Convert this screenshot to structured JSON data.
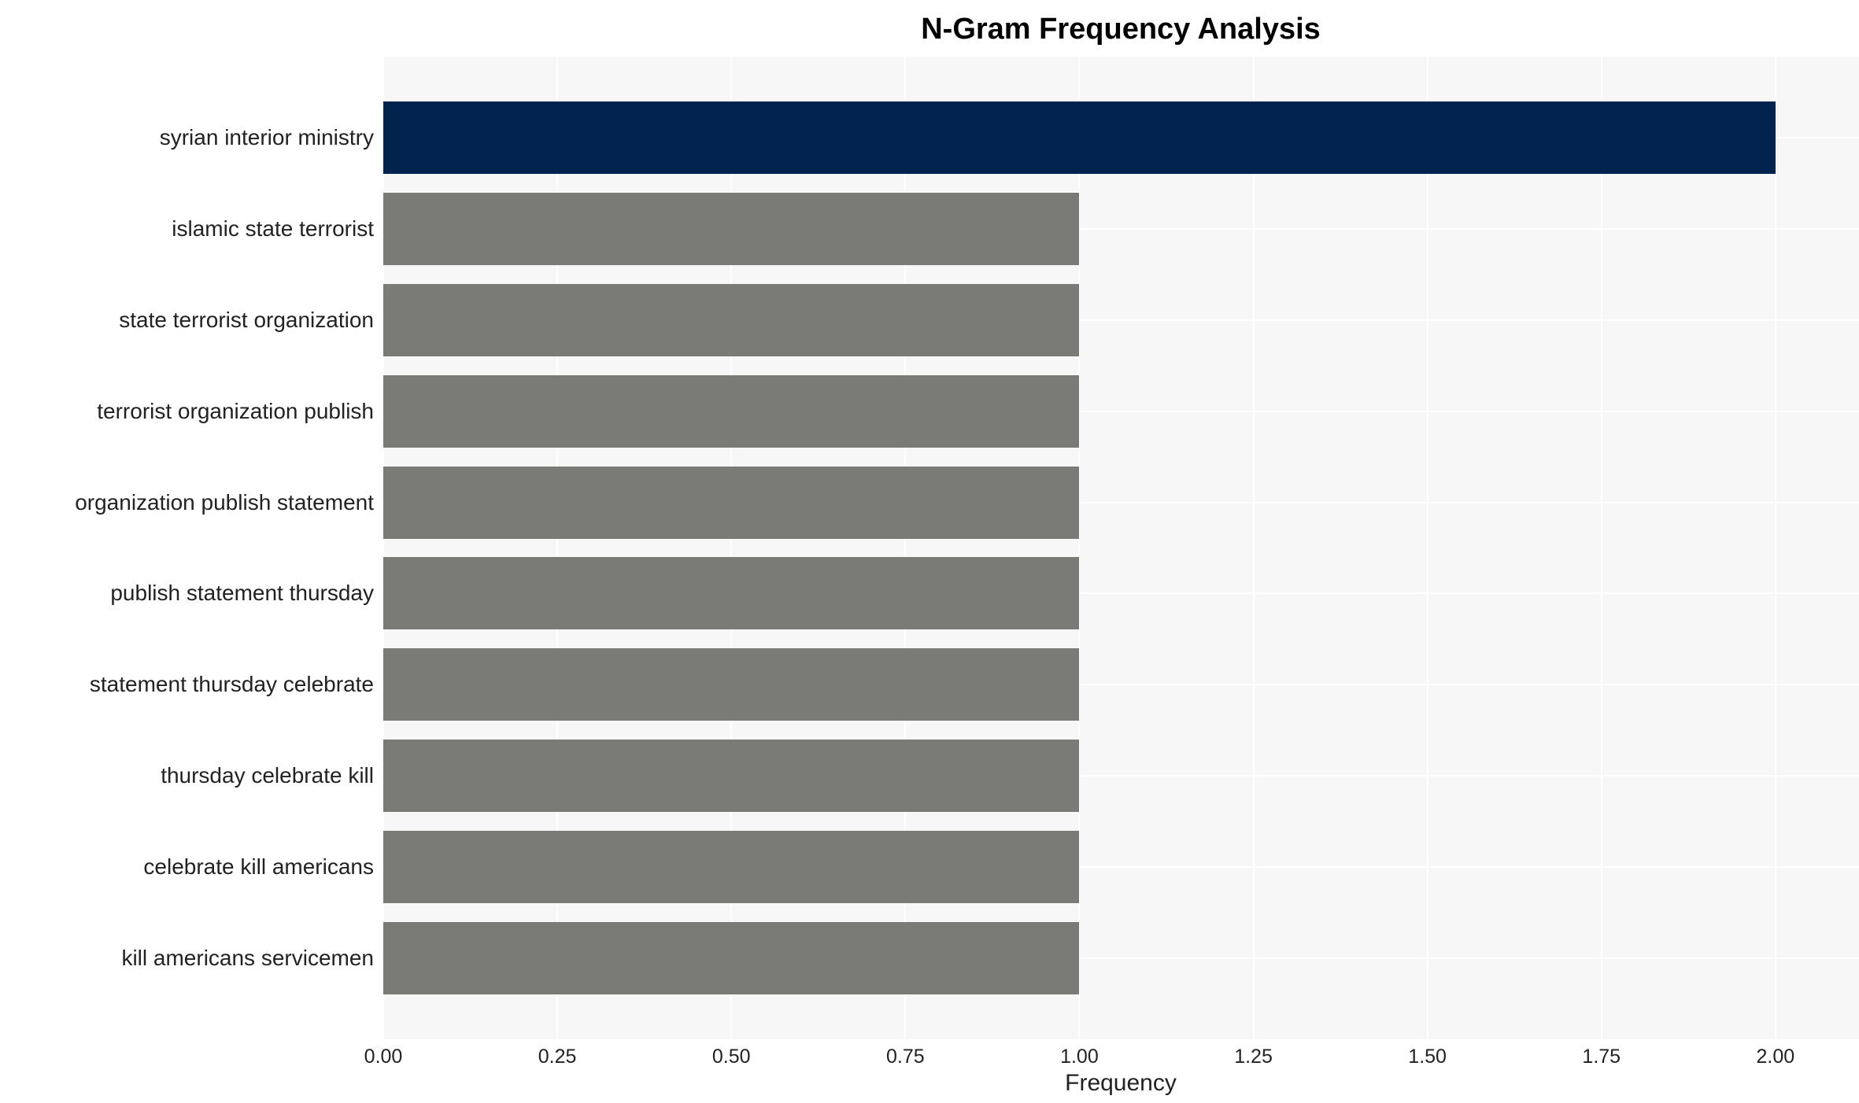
{
  "chart_data": {
    "type": "bar",
    "orientation": "horizontal",
    "title": "N-Gram Frequency Analysis",
    "xlabel": "Frequency",
    "ylabel": "",
    "categories": [
      "syrian interior ministry",
      "islamic state terrorist",
      "state terrorist organization",
      "terrorist organization publish",
      "organization publish statement",
      "publish statement thursday",
      "statement thursday celebrate",
      "thursday celebrate kill",
      "celebrate kill americans",
      "kill americans servicemen"
    ],
    "values": [
      2,
      1,
      1,
      1,
      1,
      1,
      1,
      1,
      1,
      1
    ],
    "bar_colors": [
      "#02234E",
      "#7A7A76",
      "#7A7A76",
      "#7A7A76",
      "#7A7A76",
      "#7A7A76",
      "#7A7A76",
      "#7A7A76",
      "#7A7A76",
      "#7A7A76"
    ],
    "xlim": [
      0,
      2.12
    ],
    "xticks": [
      0,
      0.25,
      0.5,
      0.75,
      1.0,
      1.25,
      1.5,
      1.75,
      2.0
    ],
    "xtick_labels": [
      "0.00",
      "0.25",
      "0.50",
      "0.75",
      "1.00",
      "1.25",
      "1.50",
      "1.75",
      "2.00"
    ],
    "grid": true,
    "legend": false,
    "colors": {
      "highlight_bar": "#02234E",
      "default_bar": "#7A7A76",
      "panel_background": "#F7F7F7",
      "grid_line": "#FFFFFF",
      "text": "#222222",
      "title_text": "#000000"
    }
  }
}
